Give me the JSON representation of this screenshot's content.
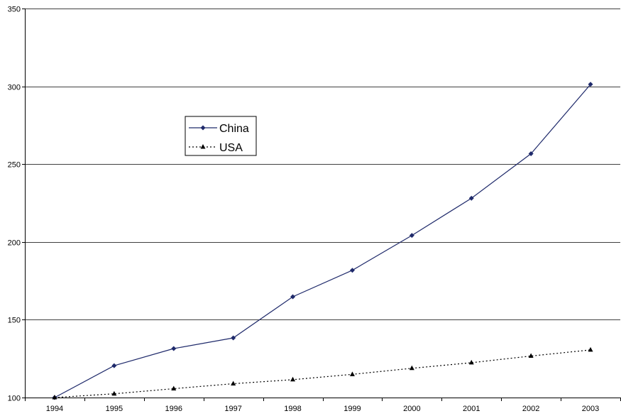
{
  "chart_data": {
    "type": "line",
    "title": "",
    "xlabel": "",
    "ylabel": "",
    "categories": [
      "1994",
      "1995",
      "1996",
      "1997",
      "1998",
      "1999",
      "2000",
      "2001",
      "2002",
      "2003"
    ],
    "ylim": [
      100,
      350
    ],
    "yticks": [
      100,
      150,
      200,
      250,
      300,
      350
    ],
    "grid": true,
    "legend_position": "upper-left-inside",
    "series": [
      {
        "name": "China",
        "marker": "diamond",
        "line_style": "solid",
        "color": "#1f2a6b",
        "values": [
          100,
          120.5,
          131.5,
          138.3,
          164.8,
          181.8,
          204.2,
          228.1,
          256.7,
          301.3
        ]
      },
      {
        "name": "USA",
        "marker": "triangle",
        "line_style": "dotted",
        "color": "#000000",
        "values": [
          100,
          102.4,
          105.7,
          108.9,
          111.5,
          114.9,
          118.8,
          122.4,
          126.7,
          130.6
        ]
      }
    ]
  }
}
